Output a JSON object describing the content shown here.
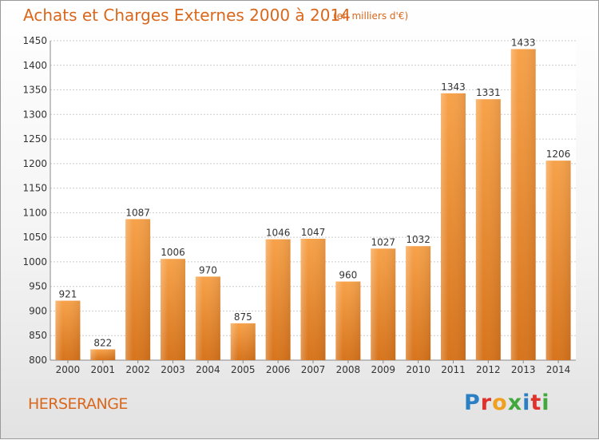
{
  "chart_data": {
    "type": "bar",
    "title": "Achats et Charges Externes 2000 à 2014",
    "unit_note": "(en milliers d'€)",
    "xlabel": "",
    "ylabel": "",
    "categories": [
      "2000",
      "2001",
      "2002",
      "2003",
      "2004",
      "2005",
      "2006",
      "2007",
      "2008",
      "2009",
      "2010",
      "2011",
      "2012",
      "2013",
      "2014"
    ],
    "values": [
      921,
      822,
      1087,
      1006,
      970,
      875,
      1046,
      1047,
      960,
      1027,
      1032,
      1343,
      1331,
      1433,
      1206
    ],
    "ylim": [
      800,
      1450
    ],
    "yticks": [
      800,
      850,
      900,
      950,
      1000,
      1050,
      1100,
      1150,
      1200,
      1250,
      1300,
      1350,
      1400,
      1450
    ],
    "grid": true,
    "legend": "none",
    "bar_color": "#f0a050"
  },
  "location": "HERSERANGE",
  "logo": {
    "letters": [
      "P",
      "r",
      "o",
      "x",
      "i",
      "t",
      "i"
    ],
    "colors": [
      "#2b7fc4",
      "#e0322c",
      "#f0a020",
      "#43a83c",
      "#2b7fc4",
      "#e0322c",
      "#43a83c"
    ]
  },
  "colors": {
    "accent": "#d9671c"
  }
}
